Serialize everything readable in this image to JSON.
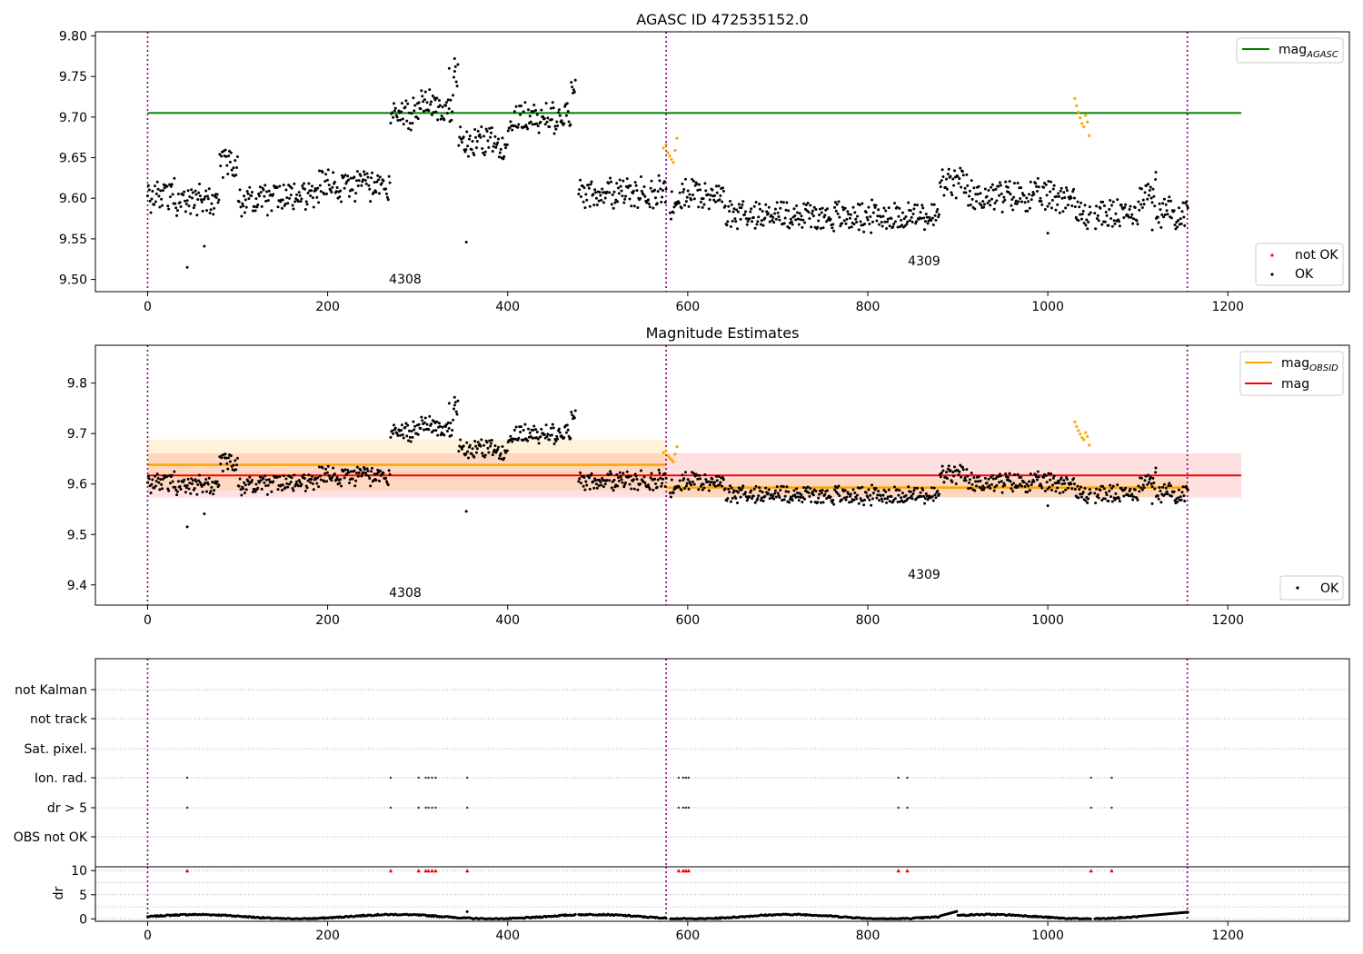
{
  "figure": {
    "obsids": [
      "4308",
      "4309"
    ],
    "legends": {
      "mag_agasc": "mag",
      "mag_agasc_sub": "AGASC",
      "not_ok": "not OK",
      "ok": "OK",
      "mag_obsid": "mag",
      "mag_obsid_sub": "OBSID",
      "mag": "mag"
    },
    "colors": {
      "ok": "#000000",
      "not_ok": "#ff0000",
      "suspect": "#ffa500",
      "agasc_line": "#008000",
      "mag_line": "#ff0000",
      "obsid_line": "#ffa500",
      "boundary": "#800080"
    }
  },
  "chart_data": [
    {
      "id": "agasc",
      "type": "scatter",
      "title": "AGASC ID 472535152.0",
      "xlim": [
        -58,
        1335
      ],
      "ylim": [
        9.485,
        9.805
      ],
      "xticks": [
        0,
        200,
        400,
        600,
        800,
        1000,
        1200
      ],
      "yticks": [
        9.5,
        9.55,
        9.6,
        9.65,
        9.7,
        9.75,
        9.8
      ],
      "ytick_labels": [
        "9.50",
        "9.55",
        "9.60",
        "9.65",
        "9.70",
        "9.75",
        "9.80"
      ],
      "agasc_mag": 9.705,
      "agasc_x_range": [
        0,
        1215
      ],
      "obsid_boundaries": [
        0,
        576,
        1155
      ],
      "obsid_labels": [
        {
          "text": "4308",
          "x": 288,
          "y": 9.5
        },
        {
          "text": "4309",
          "x": 865,
          "y": 9.522
        }
      ],
      "outliers": [
        [
          44,
          9.515
        ],
        [
          63,
          9.541
        ],
        [
          354,
          9.546
        ],
        [
          341,
          9.772
        ],
        [
          335,
          9.76
        ],
        [
          1120,
          9.632
        ],
        [
          1116,
          9.561
        ],
        [
          1000,
          9.557
        ]
      ],
      "suspect_points": [
        [
          573,
          9.662
        ],
        [
          576,
          9.666
        ],
        [
          578,
          9.656
        ],
        [
          580,
          9.652
        ],
        [
          582,
          9.648
        ],
        [
          584,
          9.644
        ],
        [
          586,
          9.659
        ],
        [
          588,
          9.674
        ],
        [
          1030,
          9.723
        ],
        [
          1032,
          9.714
        ],
        [
          1034,
          9.706
        ],
        [
          1036,
          9.699
        ],
        [
          1038,
          9.692
        ],
        [
          1040,
          9.688
        ],
        [
          1042,
          9.702
        ],
        [
          1044,
          9.694
        ],
        [
          1046,
          9.677
        ]
      ]
    },
    {
      "id": "estimates",
      "type": "scatter",
      "title": "Magnitude Estimates",
      "xlim": [
        -58,
        1335
      ],
      "ylim": [
        9.36,
        9.875
      ],
      "xticks": [
        0,
        200,
        400,
        600,
        800,
        1000,
        1200
      ],
      "yticks": [
        9.4,
        9.5,
        9.6,
        9.7,
        9.8
      ],
      "ytick_labels": [
        "9.4",
        "9.5",
        "9.6",
        "9.7",
        "9.8"
      ],
      "mag": 9.617,
      "mag_band": [
        9.573,
        9.661
      ],
      "mag_x_range": [
        0,
        1215
      ],
      "obsid_mags": [
        {
          "x0": 0,
          "x1": 576,
          "mag": 9.638,
          "band": [
            9.588,
            9.688
          ]
        },
        {
          "x0": 576,
          "x1": 1155,
          "mag": 9.593,
          "band": [
            9.575,
            9.611
          ]
        }
      ],
      "obsid_boundaries": [
        0,
        576,
        1155
      ],
      "obsid_labels": [
        {
          "text": "4308",
          "x": 288,
          "y": 9.374
        },
        {
          "text": "4309",
          "x": 865,
          "y": 9.42
        }
      ]
    },
    {
      "id": "flags",
      "type": "scatter",
      "xlim": [
        -58,
        1335
      ],
      "categories": [
        "not Kalman",
        "not track",
        "Sat. pixel.",
        "Ion. rad.",
        "dr > 5",
        "OBS not OK"
      ],
      "flag_x": [
        44,
        270,
        301,
        309,
        312,
        316,
        320,
        355,
        590,
        595,
        598,
        601,
        834,
        844,
        1048,
        1071
      ],
      "obsid_boundaries": [
        0,
        576,
        1155
      ]
    },
    {
      "id": "dr",
      "type": "scatter",
      "ylabel": "dr",
      "xlim": [
        -58,
        1335
      ],
      "ylim": [
        -0.5,
        10.8
      ],
      "yticks": [
        0,
        5,
        10
      ],
      "xticks": [
        0,
        200,
        400,
        600,
        800,
        1000,
        1200
      ],
      "clipped_x": [
        44,
        270,
        301,
        309,
        312,
        316,
        320,
        355,
        590,
        595,
        598,
        601,
        834,
        844,
        1048,
        1071
      ],
      "clip_value": 10,
      "spike": [
        355,
        1.5
      ],
      "obsid_boundaries": [
        0,
        576,
        1155
      ]
    }
  ]
}
